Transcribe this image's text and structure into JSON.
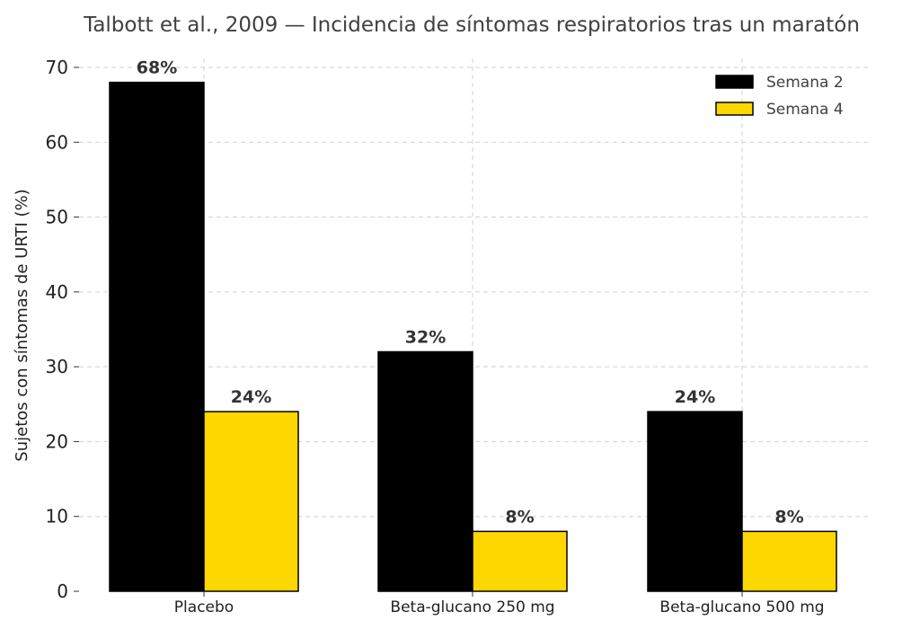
{
  "chart_data": {
    "type": "bar",
    "title": "Talbott et al., 2009 — Incidencia de síntomas respiratorios tras un maratón",
    "xlabel": "",
    "ylabel": "Sujetos con síntomas de URTI (%)",
    "categories": [
      "Placebo",
      "Beta-glucano 250 mg",
      "Beta-glucano 500 mg"
    ],
    "series": [
      {
        "name": "Semana 2",
        "values": [
          68,
          32,
          24
        ],
        "color": "#000000",
        "labels": [
          "68%",
          "32%",
          "24%"
        ]
      },
      {
        "name": "Semana 4",
        "values": [
          24,
          8,
          8
        ],
        "color": "#FFD700",
        "labels": [
          "24%",
          "8%",
          "8%"
        ]
      }
    ],
    "ylim": [
      0,
      70
    ],
    "yticks": [
      0,
      10,
      20,
      30,
      40,
      50,
      60,
      70
    ],
    "grid": true,
    "legend_position": "top-right"
  }
}
